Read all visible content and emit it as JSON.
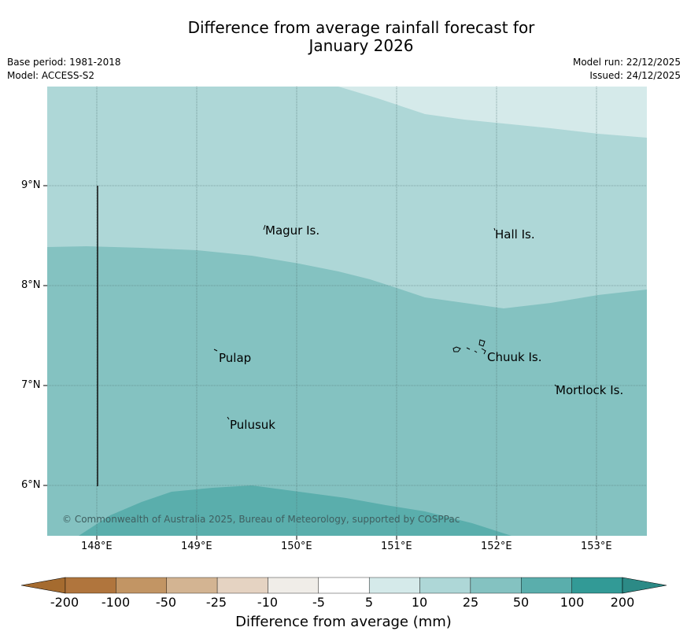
{
  "title": {
    "line1": "Difference from average rainfall forecast for",
    "line2": "January 2026"
  },
  "meta": {
    "base_period": "Base period: 1981-2018",
    "model": "Model: ACCESS-S2",
    "model_run": "Model run: 22/12/2025",
    "issued": "Issued: 24/12/2025"
  },
  "map": {
    "lon_labels": [
      "148°E",
      "149°E",
      "150°E",
      "151°E",
      "152°E",
      "153°E"
    ],
    "lat_labels": [
      "9°N",
      "8°N",
      "7°N",
      "6°N"
    ],
    "places": [
      {
        "name": "Magur Is."
      },
      {
        "name": "Hall Is."
      },
      {
        "name": "Pulap"
      },
      {
        "name": "Chuuk Is."
      },
      {
        "name": "Mortlock Is."
      },
      {
        "name": "Pulusuk"
      }
    ],
    "copyright": "© Commonwealth of Australia 2025, Bureau of Meteorology, supported by COSPPac",
    "band_colors": {
      "5_10": "#d5eaea",
      "10_25": "#aed7d7",
      "25_50": "#84c2c1",
      "50_100": "#5aaeac"
    }
  },
  "colorbar": {
    "title": "Difference from average (mm)",
    "labels": [
      "-200",
      "-100",
      "-50",
      "-25",
      "-10",
      "-5",
      "5",
      "10",
      "25",
      "50",
      "100",
      "200"
    ],
    "colors": [
      "#a56b2f",
      "#b0753d",
      "#c29564",
      "#d3b492",
      "#e5d3c2",
      "#f0ede8",
      "#ffffff",
      "#d5eaea",
      "#aed7d7",
      "#84c2c1",
      "#5aaeac",
      "#329a96",
      "#2c8a86"
    ]
  }
}
